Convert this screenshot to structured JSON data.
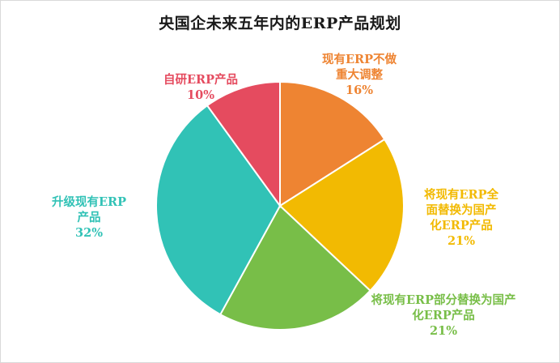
{
  "chart_data": {
    "type": "pie",
    "title": "央国企未来五年内的ERP产品规划",
    "slices": [
      {
        "label_lines": [
          "现有ERP不做",
          "重大调整"
        ],
        "value": 16,
        "value_label": "16%",
        "color": "#EE8432"
      },
      {
        "label_lines": [
          "将现有ERP全",
          "面替换为国产",
          "化ERP产品"
        ],
        "value": 21,
        "value_label": "21%",
        "color": "#F2BA02"
      },
      {
        "label_lines": [
          "将现有ERP部分替换为国产",
          "化ERP产品"
        ],
        "value": 21,
        "value_label": "21%",
        "color": "#78BE48"
      },
      {
        "label_lines": [
          "升级现有ERP",
          "产品"
        ],
        "value": 32,
        "value_label": "32%",
        "color": "#31C2B6"
      },
      {
        "label_lines": [
          "自研ERP产品"
        ],
        "value": 10,
        "value_label": "10%",
        "color": "#E54B5F"
      }
    ],
    "start_angle": "12 o'clock",
    "direction": "clockwise",
    "legend": "none",
    "data_labels": "outside"
  }
}
